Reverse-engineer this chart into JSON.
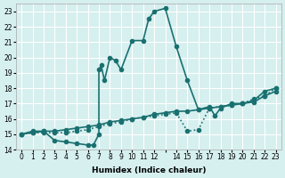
{
  "xlabel": "Humidex (Indice chaleur)",
  "xlim": [
    -0.5,
    23.5
  ],
  "ylim": [
    14,
    23.5
  ],
  "yticks": [
    14,
    15,
    16,
    17,
    18,
    19,
    20,
    21,
    22,
    23
  ],
  "xticks": [
    0,
    1,
    2,
    3,
    4,
    5,
    6,
    7,
    8,
    9,
    10,
    11,
    12,
    13,
    14,
    15,
    16,
    17,
    18,
    19,
    20,
    21,
    22,
    23
  ],
  "xtick_labels": [
    "0",
    "1",
    "2",
    "3",
    "4",
    "5",
    "6",
    "7",
    "8",
    "9",
    "10",
    "11",
    "12",
    "",
    "14",
    "15",
    "16",
    "17",
    "18",
    "19",
    "20",
    "21",
    "22",
    "23"
  ],
  "bg_color": "#d6efef",
  "grid_color": "#ffffff",
  "line_color": "#1a7070",
  "line_width": 1.2,
  "marker_size": 3,
  "line1": [
    [
      0,
      15.0
    ],
    [
      1,
      15.2
    ],
    [
      2,
      15.2
    ],
    [
      3,
      14.6
    ],
    [
      4,
      14.5
    ],
    [
      5,
      14.4
    ],
    [
      6,
      14.3
    ],
    [
      6.5,
      14.3
    ],
    [
      7,
      15.0
    ],
    [
      7,
      19.2
    ],
    [
      7.2,
      19.5
    ],
    [
      7.5,
      18.5
    ],
    [
      8,
      20.0
    ],
    [
      8.5,
      19.8
    ],
    [
      9,
      19.2
    ],
    [
      10,
      21.1
    ],
    [
      11,
      21.1
    ],
    [
      11.5,
      22.5
    ],
    [
      12,
      23.0
    ],
    [
      13,
      23.2
    ],
    [
      14,
      20.7
    ],
    [
      15,
      18.5
    ],
    [
      16,
      16.6
    ],
    [
      17,
      16.8
    ],
    [
      17.5,
      16.2
    ],
    [
      18,
      16.7
    ],
    [
      19,
      17.0
    ],
    [
      20,
      17.0
    ],
    [
      21,
      17.2
    ],
    [
      22,
      17.8
    ],
    [
      23,
      18.0
    ]
  ],
  "line2": [
    [
      0,
      15.0
    ],
    [
      1,
      15.1
    ],
    [
      2,
      15.2
    ],
    [
      3,
      15.2
    ],
    [
      4,
      15.3
    ],
    [
      5,
      15.4
    ],
    [
      6,
      15.5
    ],
    [
      7,
      15.6
    ],
    [
      8,
      15.8
    ],
    [
      9,
      15.9
    ],
    [
      10,
      16.0
    ],
    [
      11,
      16.1
    ],
    [
      12,
      16.3
    ],
    [
      13,
      16.4
    ],
    [
      14,
      16.5
    ],
    [
      15,
      16.5
    ],
    [
      16,
      16.6
    ],
    [
      17,
      16.7
    ],
    [
      18,
      16.8
    ],
    [
      19,
      16.9
    ],
    [
      20,
      17.0
    ],
    [
      21,
      17.1
    ],
    [
      22,
      17.5
    ],
    [
      23,
      17.8
    ]
  ],
  "line3": [
    [
      0,
      15.0
    ],
    [
      1,
      15.1
    ],
    [
      2,
      15.1
    ],
    [
      3,
      15.1
    ],
    [
      4,
      15.1
    ],
    [
      5,
      15.2
    ],
    [
      6,
      15.3
    ],
    [
      7,
      15.5
    ],
    [
      8,
      15.7
    ],
    [
      9,
      15.8
    ],
    [
      10,
      16.0
    ],
    [
      11,
      16.1
    ],
    [
      12,
      16.2
    ],
    [
      13,
      16.3
    ],
    [
      14,
      16.4
    ],
    [
      15,
      15.2
    ],
    [
      16,
      15.3
    ],
    [
      17,
      16.7
    ],
    [
      18,
      16.8
    ],
    [
      19,
      16.9
    ],
    [
      20,
      17.0
    ],
    [
      21,
      17.3
    ],
    [
      22,
      17.5
    ],
    [
      23,
      18.0
    ]
  ]
}
